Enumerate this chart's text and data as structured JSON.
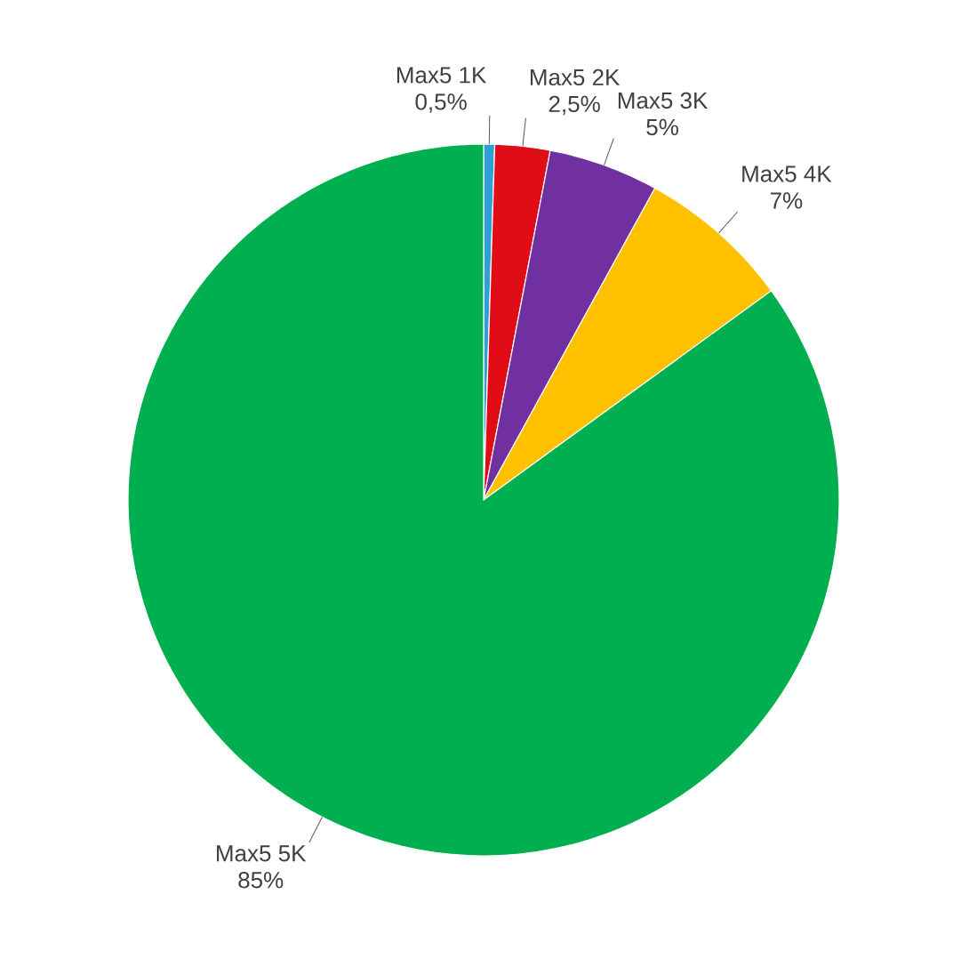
{
  "chart_data": {
    "type": "pie",
    "categories": [
      "Max5 1K",
      "Max5 2K",
      "Max5 3K",
      "Max5 4K",
      "Max5 5K"
    ],
    "values": [
      0.5,
      2.5,
      5,
      7,
      85
    ],
    "value_labels": [
      "0,5%",
      "2,5%",
      "5%",
      "7%",
      "85%"
    ],
    "colors": [
      "#2f9fd8",
      "#e00d16",
      "#7030a0",
      "#ffc000",
      "#00b050"
    ]
  }
}
